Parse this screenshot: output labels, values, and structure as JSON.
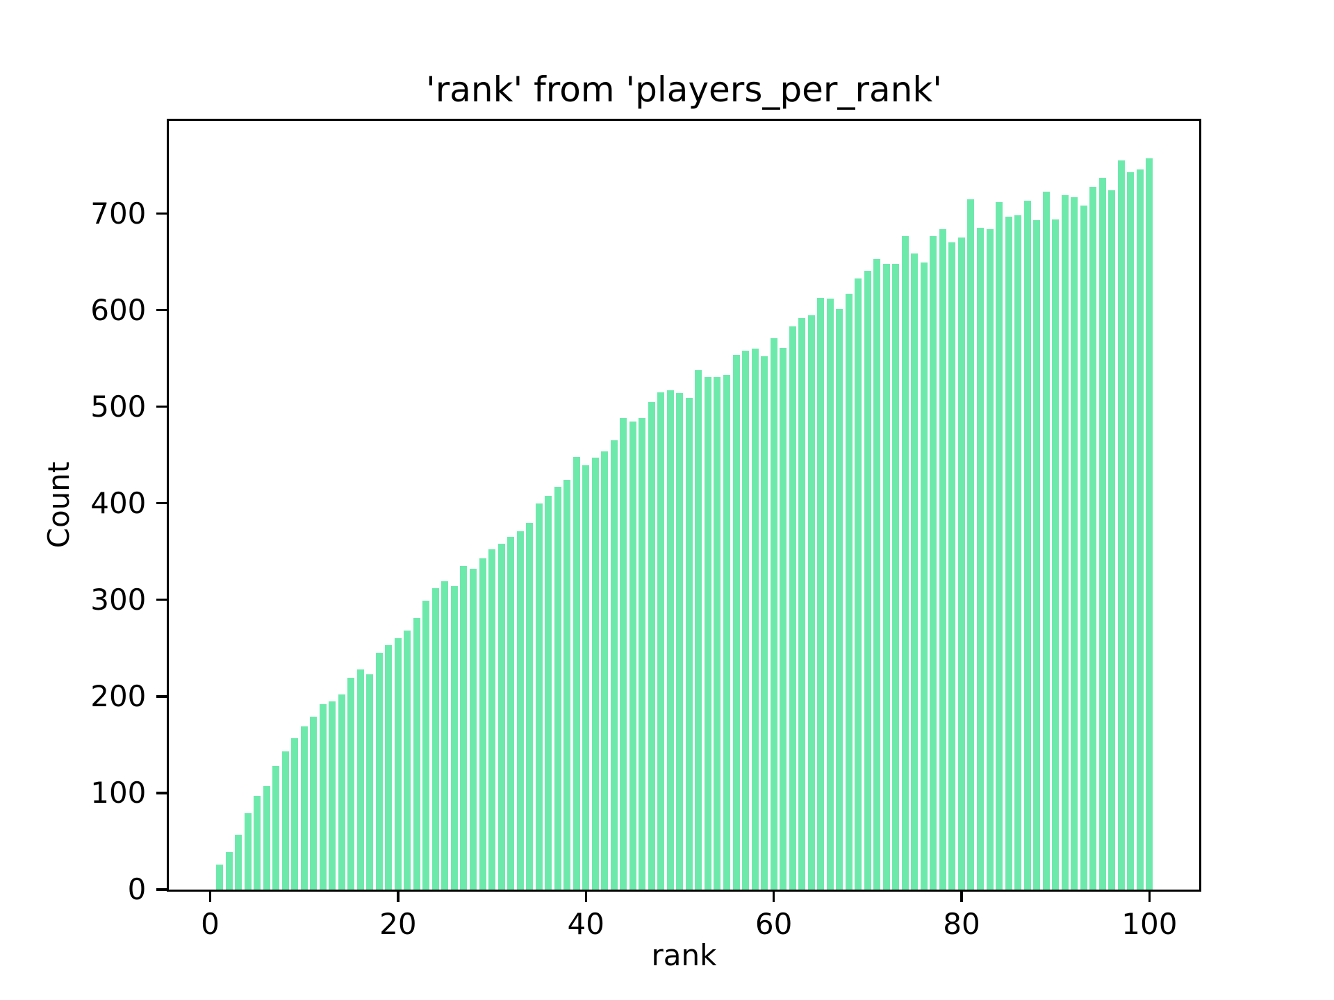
{
  "chart_data": {
    "type": "bar",
    "title": "'rank' from 'players_per_rank'",
    "xlabel": "rank",
    "ylabel": "Count",
    "bar_color": "#6ee9ac",
    "background_color": "#ffffff",
    "axis_color": "#000000",
    "grid": false,
    "legend": "none",
    "bar_width": 0.74,
    "xlim": [
      -4.4,
      105.3
    ],
    "ylim": [
      0,
      796
    ],
    "xticks": [
      0,
      20,
      40,
      60,
      80,
      100
    ],
    "yticks": [
      0,
      100,
      200,
      300,
      400,
      500,
      600,
      700
    ],
    "x": [
      1,
      2,
      3,
      4,
      5,
      6,
      7,
      8,
      9,
      10,
      11,
      12,
      13,
      14,
      15,
      16,
      17,
      18,
      19,
      20,
      21,
      22,
      23,
      24,
      25,
      26,
      27,
      28,
      29,
      30,
      31,
      32,
      33,
      34,
      35,
      36,
      37,
      38,
      39,
      40,
      41,
      42,
      43,
      44,
      45,
      46,
      47,
      48,
      49,
      50,
      51,
      52,
      53,
      54,
      55,
      56,
      57,
      58,
      59,
      60,
      61,
      62,
      63,
      64,
      65,
      66,
      67,
      68,
      69,
      70,
      71,
      72,
      73,
      74,
      75,
      76,
      77,
      78,
      79,
      80,
      81,
      82,
      83,
      84,
      85,
      86,
      87,
      88,
      89,
      90,
      91,
      92,
      93,
      94,
      95,
      96,
      97,
      98,
      99,
      100
    ],
    "values": [
      26,
      39,
      57,
      79,
      97,
      107,
      128,
      143,
      157,
      169,
      179,
      192,
      195,
      202,
      219,
      228,
      223,
      245,
      253,
      260,
      268,
      281,
      299,
      312,
      319,
      314,
      335,
      332,
      343,
      352,
      358,
      365,
      371,
      380,
      400,
      408,
      417,
      424,
      448,
      439,
      447,
      454,
      465,
      488,
      485,
      488,
      505,
      515,
      517,
      514,
      509,
      538,
      531,
      531,
      533,
      554,
      558,
      560,
      552,
      571,
      561,
      583,
      592,
      595,
      613,
      612,
      601,
      617,
      633,
      641,
      653,
      648,
      648,
      677,
      659,
      649,
      677,
      684,
      670,
      675,
      715,
      685,
      684,
      712,
      697,
      698,
      713,
      693,
      723,
      694,
      719,
      717,
      708,
      728,
      737,
      724,
      755,
      743,
      746,
      757
    ]
  }
}
